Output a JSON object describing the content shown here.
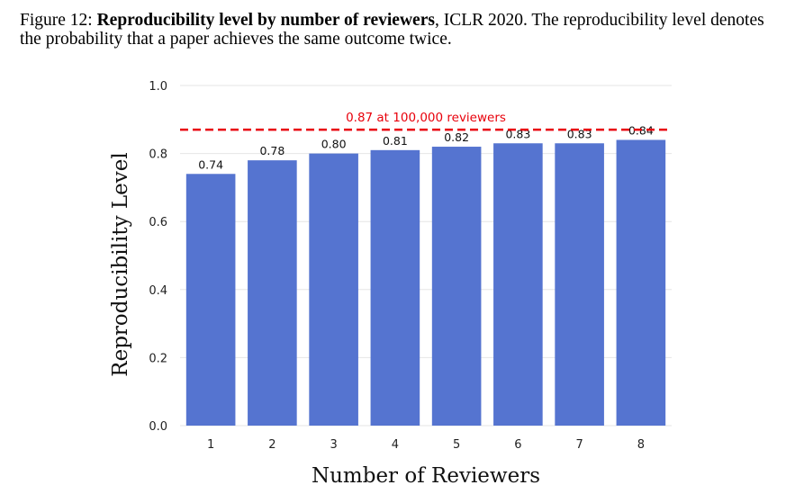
{
  "caption": {
    "prefix": "Figure 12: ",
    "bold": "Reproducibility level by number of reviewers",
    "rest": ", ICLR 2020. The reproducibility level denotes the probability that a paper achieves the same outcome twice."
  },
  "chart_data": {
    "type": "bar",
    "title": "",
    "xlabel": "Number of Reviewers",
    "ylabel": "Reproducibility Level",
    "categories": [
      "1",
      "2",
      "3",
      "4",
      "5",
      "6",
      "7",
      "8"
    ],
    "values": [
      0.74,
      0.78,
      0.8,
      0.81,
      0.82,
      0.83,
      0.83,
      0.84
    ],
    "value_labels": [
      "0.74",
      "0.78",
      "0.80",
      "0.81",
      "0.82",
      "0.83",
      "0.83",
      "0.84"
    ],
    "ylim": [
      0.0,
      1.0
    ],
    "yticks": [
      "0.0",
      "0.2",
      "0.4",
      "0.6",
      "0.8",
      "1.0"
    ],
    "reference_line": {
      "value": 0.87,
      "label": "0.87 at 100,000 reviewers",
      "color": "#e8000b",
      "style": "dashed"
    },
    "bar_color": "#5574d0",
    "grid": true
  }
}
